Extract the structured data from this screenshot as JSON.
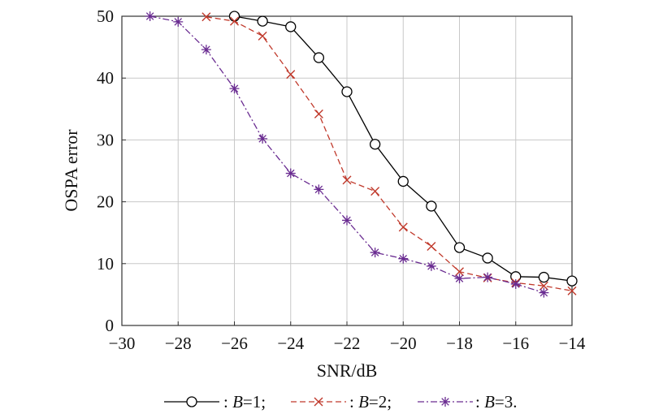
{
  "chart_data": {
    "type": "line",
    "title": "",
    "xlabel": "SNR/dB",
    "ylabel": "OSPA error",
    "xlim": [
      -30,
      -14
    ],
    "ylim": [
      0,
      50
    ],
    "xticks": [
      -30,
      -28,
      -26,
      -24,
      -22,
      -20,
      -18,
      -16,
      -14
    ],
    "yticks": [
      0,
      10,
      20,
      30,
      40,
      50
    ],
    "xtick_labels": [
      "−30",
      "−28",
      "−26",
      "−24",
      "−22",
      "−20",
      "−18",
      "−16",
      "−14"
    ],
    "ytick_labels": [
      "0",
      "10",
      "20",
      "30",
      "40",
      "50"
    ],
    "grid": true,
    "legend_position": "bottom",
    "series": [
      {
        "name": "B=1",
        "legend_prefix": ": ",
        "legend_var": "B",
        "legend_suffix": "=1;",
        "color": "#000000",
        "dash": "solid",
        "marker": "circle",
        "x": [
          -26,
          -25,
          -24,
          -23,
          -22,
          -21,
          -20,
          -19,
          -18,
          -17,
          -16,
          -15,
          -14
        ],
        "y": [
          50,
          49.2,
          48.3,
          43.3,
          37.8,
          29.3,
          23.3,
          19.3,
          12.6,
          10.9,
          7.9,
          7.8,
          7.2
        ]
      },
      {
        "name": "B=2",
        "legend_prefix": ": ",
        "legend_var": "B",
        "legend_suffix": "=2;",
        "color": "#c0392b",
        "dash": "dashed",
        "marker": "x",
        "x": [
          -27,
          -26,
          -25,
          -24,
          -23,
          -22,
          -21,
          -20,
          -19,
          -18,
          -17,
          -16,
          -15,
          -14
        ],
        "y": [
          49.9,
          49.2,
          46.8,
          40.6,
          34.2,
          23.5,
          21.7,
          15.9,
          12.8,
          8.7,
          7.7,
          6.9,
          6.4,
          5.6
        ]
      },
      {
        "name": "B=3",
        "legend_prefix": ": ",
        "legend_var": "B",
        "legend_suffix": "=3.",
        "color": "#6a2c91",
        "dash": "dashdot",
        "marker": "star",
        "x": [
          -29,
          -28,
          -27,
          -26,
          -25,
          -24,
          -23,
          -22,
          -21,
          -20,
          -19,
          -18,
          -17,
          -16,
          -15
        ],
        "y": [
          50,
          49.1,
          44.6,
          38.3,
          30.2,
          24.6,
          22.0,
          17.0,
          11.8,
          10.8,
          9.6,
          7.6,
          7.8,
          6.7,
          5.3
        ]
      }
    ]
  }
}
